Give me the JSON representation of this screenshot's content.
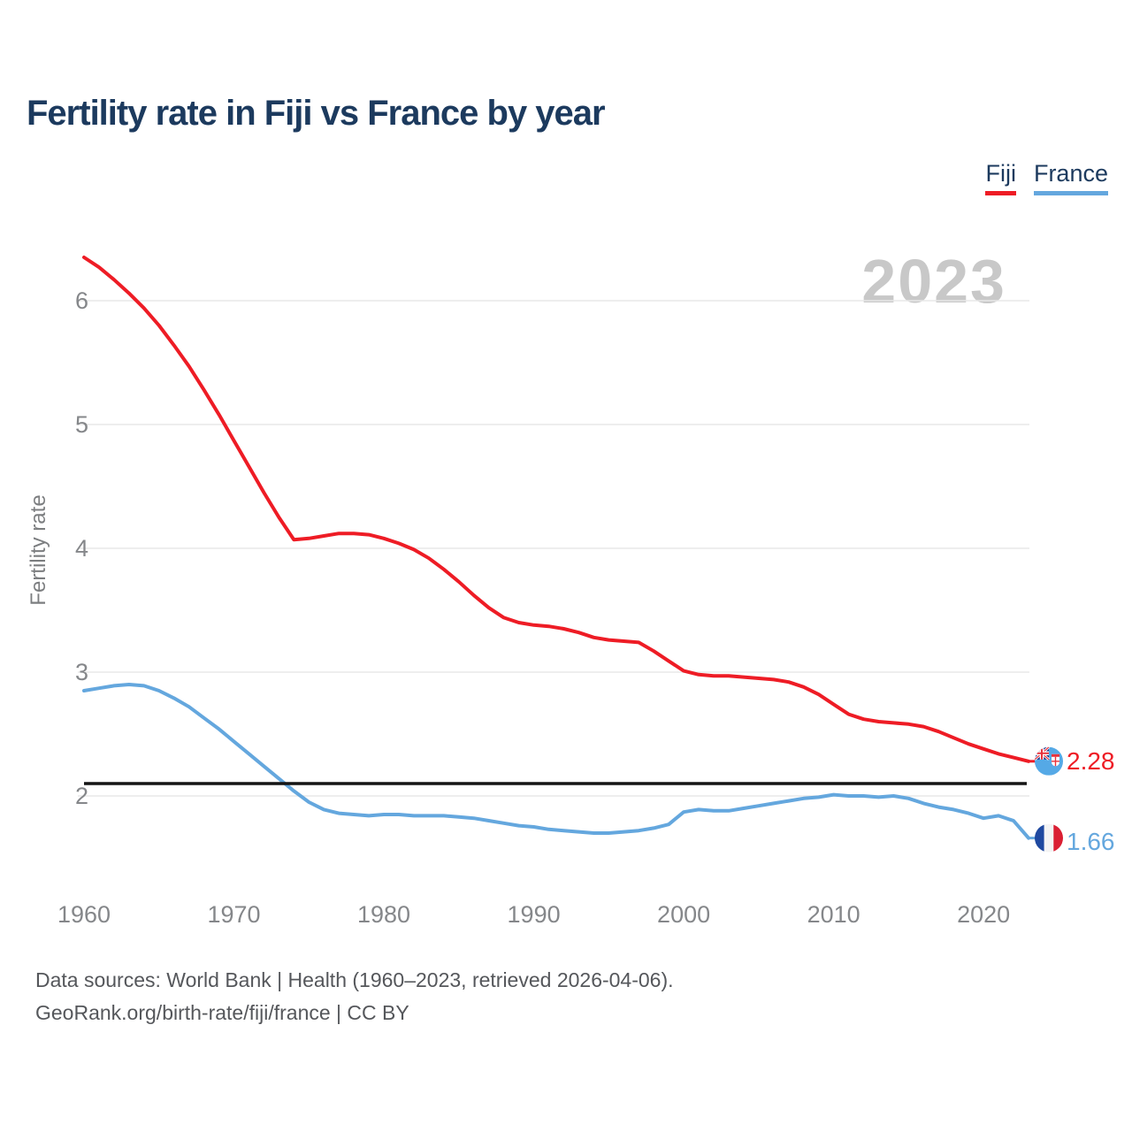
{
  "title": "Fertility rate in Fiji vs France by year",
  "watermark": "2023",
  "y_axis_label": "Fertility rate",
  "legend": [
    {
      "label": "Fiji",
      "color": "#ee1c25"
    },
    {
      "label": "France",
      "color": "#64a7de"
    }
  ],
  "end_labels": [
    {
      "series": "Fiji",
      "value": "2.28",
      "color": "#ee1c25",
      "flag": "fiji-flag-icon"
    },
    {
      "series": "France",
      "value": "1.66",
      "color": "#64a7de",
      "flag": "france-flag-icon"
    }
  ],
  "reference_line": {
    "value": 2.1,
    "color": "#141414"
  },
  "footer": {
    "line1": "Data sources: World Bank | Health (1960–2023, retrieved 2026-04-06).",
    "line2": "GeoRank.org/birth-rate/fiji/france | CC BY"
  },
  "chart_data": {
    "type": "line",
    "title": "Fertility rate in Fiji vs France by year",
    "xlabel": "",
    "ylabel": "Fertility rate",
    "xlim": [
      1960,
      2023
    ],
    "ylim": [
      1.5,
      6.5
    ],
    "xticks": [
      1960,
      1970,
      1980,
      1990,
      2000,
      2010,
      2020
    ],
    "yticks": [
      2,
      3,
      4,
      5,
      6
    ],
    "grid": "horizontal",
    "legend_position": "top-right",
    "x": [
      1960,
      1961,
      1962,
      1963,
      1964,
      1965,
      1966,
      1967,
      1968,
      1969,
      1970,
      1971,
      1972,
      1973,
      1974,
      1975,
      1976,
      1977,
      1978,
      1979,
      1980,
      1981,
      1982,
      1983,
      1984,
      1985,
      1986,
      1987,
      1988,
      1989,
      1990,
      1991,
      1992,
      1993,
      1994,
      1995,
      1996,
      1997,
      1998,
      1999,
      2000,
      2001,
      2002,
      2003,
      2004,
      2005,
      2006,
      2007,
      2008,
      2009,
      2010,
      2011,
      2012,
      2013,
      2014,
      2015,
      2016,
      2017,
      2018,
      2019,
      2020,
      2021,
      2022,
      2023
    ],
    "series": [
      {
        "name": "Fiji",
        "color": "#ee1c25",
        "values": [
          6.35,
          6.27,
          6.17,
          6.06,
          5.94,
          5.8,
          5.64,
          5.47,
          5.28,
          5.08,
          4.87,
          4.66,
          4.45,
          4.25,
          4.07,
          4.08,
          4.1,
          4.12,
          4.12,
          4.11,
          4.08,
          4.04,
          3.99,
          3.92,
          3.83,
          3.73,
          3.62,
          3.52,
          3.44,
          3.4,
          3.38,
          3.37,
          3.35,
          3.32,
          3.28,
          3.26,
          3.25,
          3.24,
          3.17,
          3.09,
          3.01,
          2.98,
          2.97,
          2.97,
          2.96,
          2.95,
          2.94,
          2.92,
          2.88,
          2.82,
          2.74,
          2.66,
          2.62,
          2.6,
          2.59,
          2.58,
          2.56,
          2.52,
          2.47,
          2.42,
          2.38,
          2.34,
          2.31,
          2.28
        ]
      },
      {
        "name": "France",
        "color": "#64a7de",
        "values": [
          2.85,
          2.87,
          2.89,
          2.9,
          2.89,
          2.85,
          2.79,
          2.72,
          2.63,
          2.54,
          2.44,
          2.34,
          2.24,
          2.14,
          2.04,
          1.95,
          1.89,
          1.86,
          1.85,
          1.84,
          1.85,
          1.85,
          1.84,
          1.84,
          1.84,
          1.83,
          1.82,
          1.8,
          1.78,
          1.76,
          1.75,
          1.73,
          1.72,
          1.71,
          1.7,
          1.7,
          1.71,
          1.72,
          1.74,
          1.77,
          1.87,
          1.89,
          1.88,
          1.88,
          1.9,
          1.92,
          1.94,
          1.96,
          1.98,
          1.99,
          2.01,
          2.0,
          2.0,
          1.99,
          2.0,
          1.98,
          1.94,
          1.91,
          1.89,
          1.86,
          1.82,
          1.84,
          1.8,
          1.66
        ]
      }
    ]
  }
}
